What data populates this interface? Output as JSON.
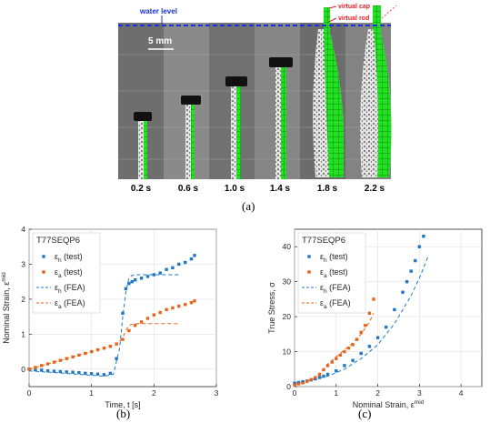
{
  "figure": {
    "panel_a_label": "(a)",
    "panel_b_label": "(b)",
    "panel_c_label": "(c)"
  },
  "photo": {
    "water_level_label": "water level",
    "virtual_cap_label": "virtual cap",
    "virtual_rod_label": "virtual rod",
    "scale_label": "5 mm",
    "times": [
      "0.2 s",
      "0.6 s",
      "1.0 s",
      "1.4 s",
      "1.8 s",
      "2.2 s"
    ],
    "colors": {
      "water_level": "#1a2fd6",
      "annotation": "#e0202a",
      "mesh": "#22e022"
    }
  },
  "chart_data": [
    {
      "type": "scatter",
      "title": "T77SEQP6",
      "xlabel": "Time, t [s]",
      "ylabel": "Nominal Strain, ε",
      "ylabel_sup": "mid",
      "xlim": [
        0,
        3
      ],
      "ylim": [
        -0.5,
        4
      ],
      "xticks": [
        0,
        1,
        2,
        3
      ],
      "yticks": [
        0,
        1,
        2,
        3,
        4
      ],
      "grid": true,
      "legend_placement": "top-left",
      "series": [
        {
          "name": "ε_h (test)",
          "legend_main": "ε",
          "legend_sub": "h",
          "legend_suffix": " (test)",
          "style": "markers",
          "color": "#1f77c4",
          "x": [
            0.0,
            0.1,
            0.2,
            0.3,
            0.4,
            0.5,
            0.6,
            0.7,
            0.8,
            0.9,
            1.0,
            1.1,
            1.2,
            1.3,
            1.4,
            1.5,
            1.55,
            1.6,
            1.65,
            1.7,
            1.8,
            1.9,
            2.0,
            2.1,
            2.2,
            2.3,
            2.4,
            2.5,
            2.6,
            2.65
          ],
          "y": [
            0.0,
            -0.02,
            -0.03,
            -0.05,
            -0.06,
            -0.07,
            -0.08,
            -0.09,
            -0.1,
            -0.12,
            -0.13,
            -0.14,
            -0.16,
            -0.12,
            0.3,
            1.6,
            2.3,
            2.45,
            2.5,
            2.55,
            2.6,
            2.65,
            2.7,
            2.75,
            2.85,
            2.9,
            3.0,
            3.05,
            3.15,
            3.25
          ]
        },
        {
          "name": "ε_a (test)",
          "legend_main": "ε",
          "legend_sub": "a",
          "legend_suffix": " (test)",
          "style": "markers",
          "color": "#e8641c",
          "x": [
            0.0,
            0.1,
            0.2,
            0.3,
            0.4,
            0.5,
            0.6,
            0.7,
            0.8,
            0.9,
            1.0,
            1.1,
            1.2,
            1.3,
            1.4,
            1.5,
            1.6,
            1.7,
            1.8,
            1.9,
            2.0,
            2.1,
            2.2,
            2.3,
            2.4,
            2.5,
            2.6,
            2.65
          ],
          "y": [
            0.0,
            0.05,
            0.1,
            0.15,
            0.2,
            0.25,
            0.3,
            0.35,
            0.4,
            0.45,
            0.5,
            0.55,
            0.6,
            0.65,
            0.72,
            0.85,
            1.1,
            1.25,
            1.35,
            1.45,
            1.55,
            1.62,
            1.7,
            1.75,
            1.8,
            1.85,
            1.9,
            1.95
          ]
        },
        {
          "name": "ε_h (FEA)",
          "legend_main": "ε",
          "legend_sub": "h",
          "legend_suffix": " (FEA)",
          "style": "dashed",
          "color": "#1f77c4",
          "x": [
            0.0,
            0.4,
            0.8,
            1.2,
            1.35,
            1.45,
            1.5,
            1.55,
            1.6,
            1.65,
            1.7,
            2.0,
            2.4
          ],
          "y": [
            -0.05,
            -0.1,
            -0.15,
            -0.2,
            -0.15,
            0.6,
            1.5,
            2.2,
            2.6,
            2.68,
            2.7,
            2.7,
            2.7
          ]
        },
        {
          "name": "ε_a (FEA)",
          "legend_main": "ε",
          "legend_sub": "a",
          "legend_suffix": " (FEA)",
          "style": "dashed",
          "color": "#e8641c",
          "x": [
            0.0,
            0.4,
            0.8,
            1.2,
            1.4,
            1.5,
            1.55,
            1.6,
            1.65,
            1.7,
            2.0,
            2.4
          ],
          "y": [
            0.0,
            0.2,
            0.4,
            0.6,
            0.7,
            0.9,
            1.1,
            1.25,
            1.28,
            1.3,
            1.3,
            1.3
          ]
        }
      ]
    },
    {
      "type": "scatter",
      "title": "T77SEQP6",
      "xlabel": "Nominal Strain, ε",
      "xlabel_sup": "mid",
      "ylabel": "True Stress, σ",
      "xlim": [
        0,
        4.5
      ],
      "ylim": [
        0,
        45
      ],
      "xticks": [
        0,
        1,
        2,
        3,
        4
      ],
      "yticks": [
        0,
        10,
        20,
        30,
        40
      ],
      "grid": true,
      "legend_placement": "top-left",
      "series": [
        {
          "name": "ε_h (test)",
          "legend_main": "ε",
          "legend_sub": "h",
          "legend_suffix": " (test)",
          "style": "markers",
          "color": "#1f77c4",
          "x": [
            0.0,
            0.1,
            0.2,
            0.3,
            0.4,
            0.5,
            0.6,
            0.7,
            0.8,
            1.0,
            1.2,
            1.4,
            1.6,
            1.8,
            2.0,
            2.2,
            2.4,
            2.6,
            2.7,
            2.8,
            2.9,
            3.0,
            3.1
          ],
          "y": [
            1.0,
            1.2,
            1.4,
            1.6,
            1.9,
            2.2,
            2.6,
            3.0,
            3.5,
            4.5,
            6.0,
            7.5,
            9.5,
            11.5,
            14.0,
            17.0,
            22.0,
            27.0,
            30.0,
            33.0,
            36.0,
            40.0,
            43.0
          ]
        },
        {
          "name": "ε_a (test)",
          "legend_main": "ε",
          "legend_sub": "a",
          "legend_suffix": " (test)",
          "style": "markers",
          "color": "#e8641c",
          "x": [
            0.0,
            0.1,
            0.2,
            0.3,
            0.4,
            0.5,
            0.6,
            0.7,
            0.8,
            0.9,
            1.0,
            1.1,
            1.2,
            1.3,
            1.4,
            1.5,
            1.6,
            1.7,
            1.8,
            1.9
          ],
          "y": [
            0.5,
            0.8,
            1.1,
            1.5,
            2.0,
            2.6,
            3.5,
            4.8,
            6.0,
            7.0,
            8.0,
            9.0,
            10.0,
            11.0,
            12.0,
            13.5,
            15.5,
            17.5,
            21.0,
            25.0
          ]
        },
        {
          "name": "ε_h (FEA)",
          "legend_main": "ε",
          "legend_sub": "h",
          "legend_suffix": " (FEA)",
          "style": "dashed",
          "color": "#1f77c4",
          "x": [
            0.0,
            0.4,
            0.8,
            1.2,
            1.6,
            2.0,
            2.4,
            2.8,
            3.0,
            3.2
          ],
          "y": [
            1.0,
            1.8,
            3.0,
            5.0,
            8.0,
            12.0,
            18.0,
            26.0,
            31.0,
            37.0
          ]
        },
        {
          "name": "ε_a (FEA)",
          "legend_main": "ε",
          "legend_sub": "a",
          "legend_suffix": " (FEA)",
          "style": "dashed",
          "color": "#e8641c",
          "x": [
            0.0,
            0.3,
            0.5,
            0.6,
            0.7,
            0.8,
            1.0,
            1.2,
            1.4,
            1.6,
            1.8,
            1.9
          ],
          "y": [
            0.5,
            1.5,
            2.5,
            3.5,
            5.0,
            6.5,
            8.5,
            10.5,
            12.5,
            15.0,
            18.5,
            21.0
          ]
        }
      ]
    }
  ]
}
